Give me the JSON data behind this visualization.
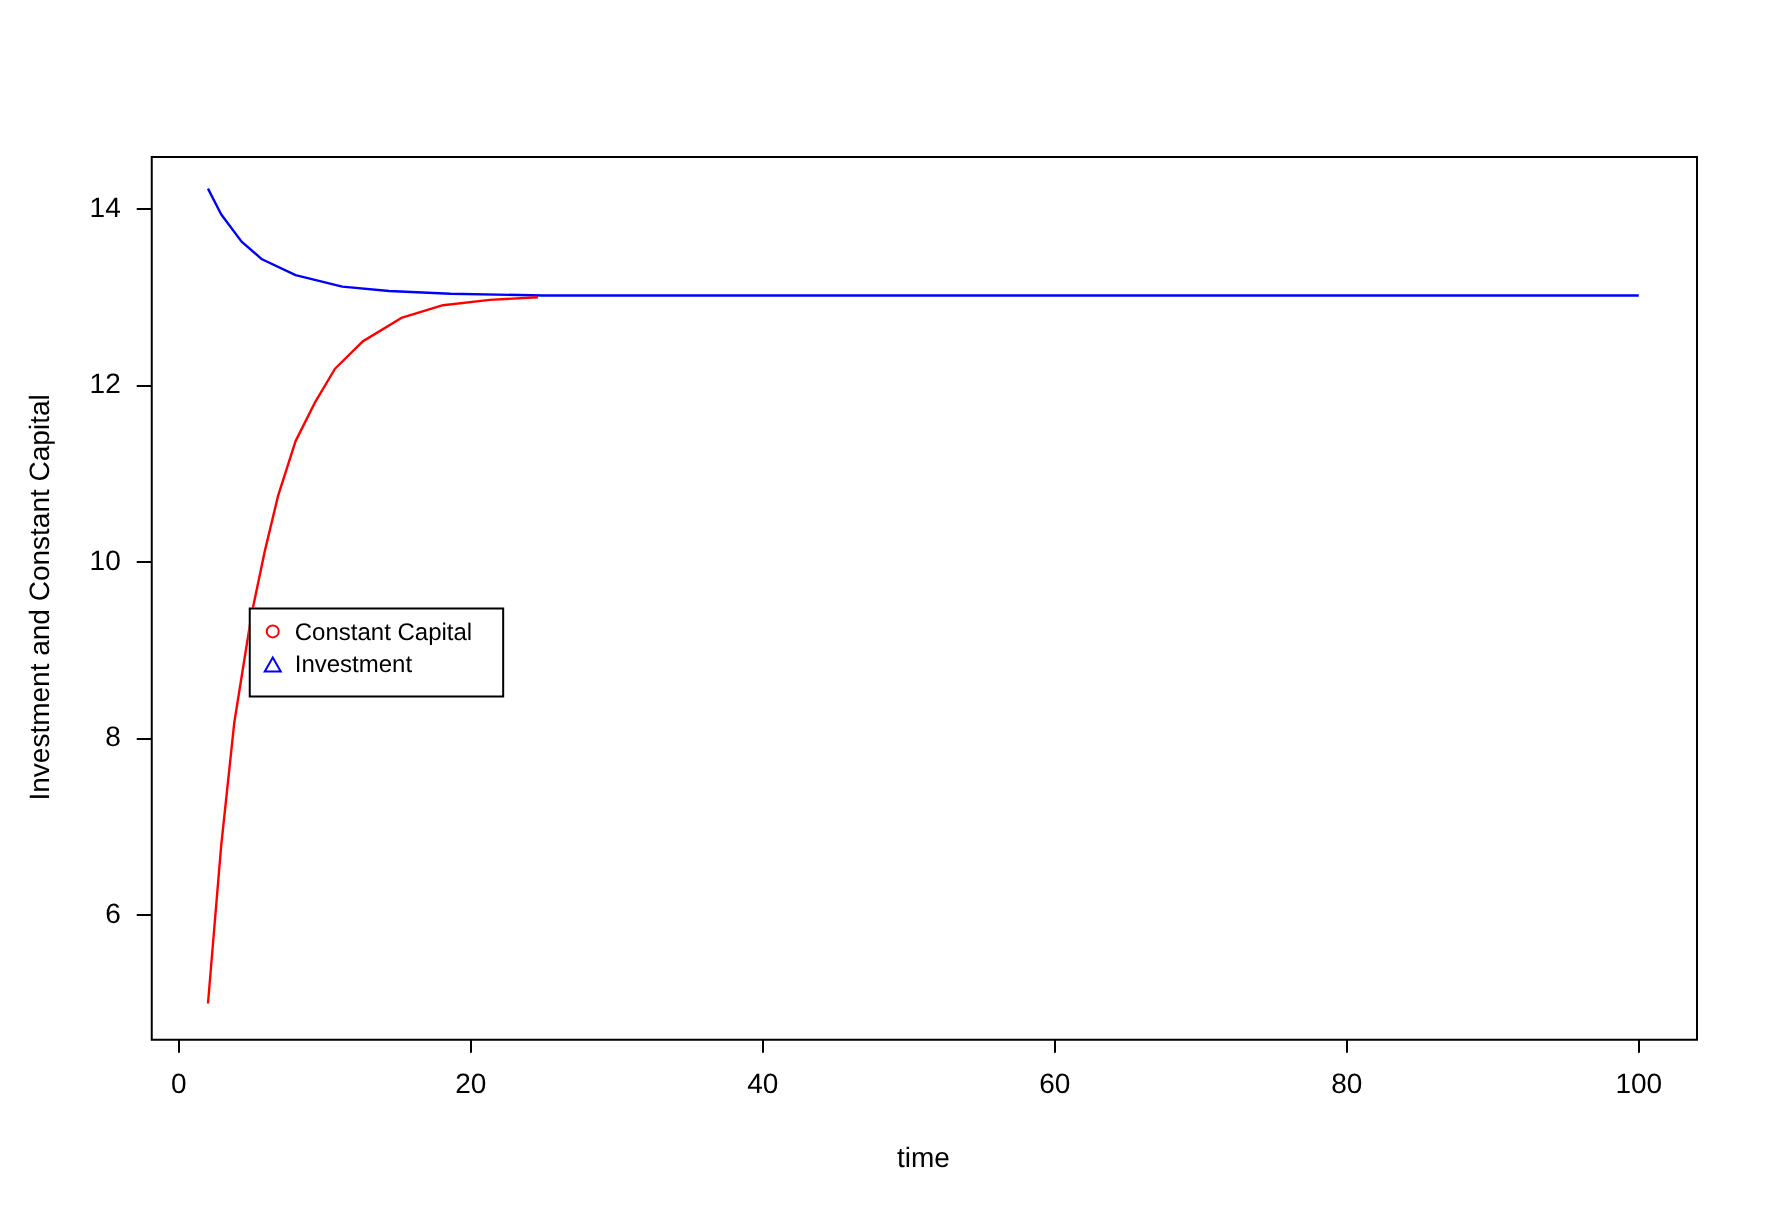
{
  "chart_data": {
    "type": "line",
    "xlabel": "time",
    "ylabel": "Investment and Constant Capital",
    "xlim": [
      -1.92,
      103.92
    ],
    "xticks": [
      0,
      20,
      40,
      60,
      80,
      100
    ],
    "ylim": [
      4.6,
      14.6
    ],
    "yticks": [
      6,
      8,
      10,
      12,
      14
    ],
    "legend": "left",
    "grid": false,
    "series": [
      {
        "name": "Constant Capital",
        "color": "#ff0000",
        "x": [
          2,
          2.9,
          3.8,
          5,
          5.9,
          6.8,
          8,
          9.3,
          10.7,
          12.6,
          15.3,
          18.1,
          21.3,
          24.6
        ],
        "values": [
          5.0,
          6.78,
          8.18,
          9.42,
          10.13,
          10.75,
          11.37,
          11.8,
          12.19,
          12.5,
          12.77,
          12.91,
          12.97,
          13.0
        ]
      },
      {
        "name": "Investment",
        "color": "#0000ff",
        "x": [
          2,
          2.9,
          4.3,
          5.7,
          8,
          11.2,
          14.4,
          18.6,
          25,
          100
        ],
        "values": [
          14.23,
          13.94,
          13.63,
          13.43,
          13.25,
          13.12,
          13.07,
          13.04,
          13.02,
          13.02
        ]
      }
    ]
  }
}
